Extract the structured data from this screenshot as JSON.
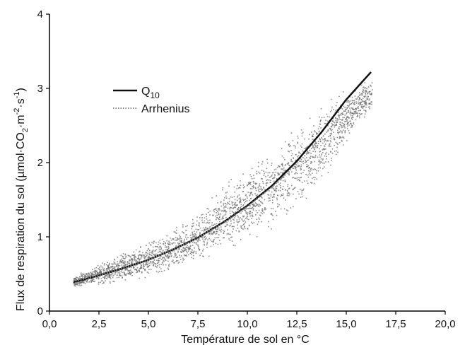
{
  "chart_data": {
    "type": "scatter",
    "title": "",
    "xlabel": "Température de sol en °C",
    "ylabel": {
      "prefix": "Flux de respiration du sol (µmol·CO",
      "sub": "2",
      "mid": "·m",
      "sup1": "-2",
      "mid2": "·s",
      "sup2": "-1",
      "suffix": ")"
    },
    "xlim": [
      0,
      20
    ],
    "ylim": [
      0,
      4
    ],
    "x_ticks": [
      0,
      2.5,
      5,
      7.5,
      10,
      12.5,
      15,
      17.5,
      20
    ],
    "x_tick_labels": [
      "0,0",
      "2,5",
      "5,0",
      "7,5",
      "10,0",
      "12,5",
      "15,0",
      "17,5",
      "20,0"
    ],
    "y_ticks": [
      0,
      1,
      2,
      3,
      4
    ],
    "y_tick_labels": [
      "0",
      "1",
      "2",
      "3",
      "4"
    ],
    "grid": false,
    "legend_position": "upper-left",
    "scatter_cloud": {
      "x_range": [
        1.2,
        16.3
      ],
      "density_envelope": [
        {
          "x": 1.2,
          "low": 0.32,
          "high": 0.48
        },
        {
          "x": 2.5,
          "low": 0.35,
          "high": 0.65
        },
        {
          "x": 4.0,
          "low": 0.4,
          "high": 0.85
        },
        {
          "x": 5.0,
          "low": 0.45,
          "high": 0.95
        },
        {
          "x": 6.5,
          "low": 0.55,
          "high": 1.15
        },
        {
          "x": 7.5,
          "low": 0.65,
          "high": 1.35
        },
        {
          "x": 9.0,
          "low": 0.85,
          "high": 1.75
        },
        {
          "x": 10.0,
          "low": 0.95,
          "high": 1.95
        },
        {
          "x": 11.5,
          "low": 1.15,
          "high": 2.25
        },
        {
          "x": 12.5,
          "low": 1.35,
          "high": 2.55
        },
        {
          "x": 13.5,
          "low": 1.65,
          "high": 2.75
        },
        {
          "x": 14.5,
          "low": 2.05,
          "high": 2.95
        },
        {
          "x": 15.5,
          "low": 2.45,
          "high": 3.05
        },
        {
          "x": 16.3,
          "low": 2.7,
          "high": 3.15
        }
      ]
    },
    "series": [
      {
        "name": "Q",
        "name_sub": "10",
        "style": "solid",
        "x": [
          1.2,
          2.5,
          3.75,
          5.0,
          6.25,
          7.5,
          8.75,
          10.0,
          11.25,
          12.5,
          13.75,
          15.0,
          16.25
        ],
        "y": [
          0.39,
          0.48,
          0.58,
          0.69,
          0.83,
          0.99,
          1.19,
          1.42,
          1.69,
          2.02,
          2.41,
          2.85,
          3.22
        ]
      },
      {
        "name": "Arrhenius",
        "style": "dotted",
        "x": [
          1.2,
          2.5,
          3.75,
          5.0,
          6.25,
          7.5,
          8.75,
          10.0,
          11.25,
          12.5,
          13.75,
          15.0,
          16.25
        ],
        "y": [
          0.4,
          0.48,
          0.58,
          0.69,
          0.83,
          0.99,
          1.18,
          1.41,
          1.67,
          1.98,
          2.33,
          2.73,
          3.05
        ]
      }
    ],
    "colors": {
      "scatter": "#6a6a6a",
      "q10_line": "#111111",
      "arrhenius_line": "#8a8a8a",
      "axis": "#000000"
    }
  }
}
